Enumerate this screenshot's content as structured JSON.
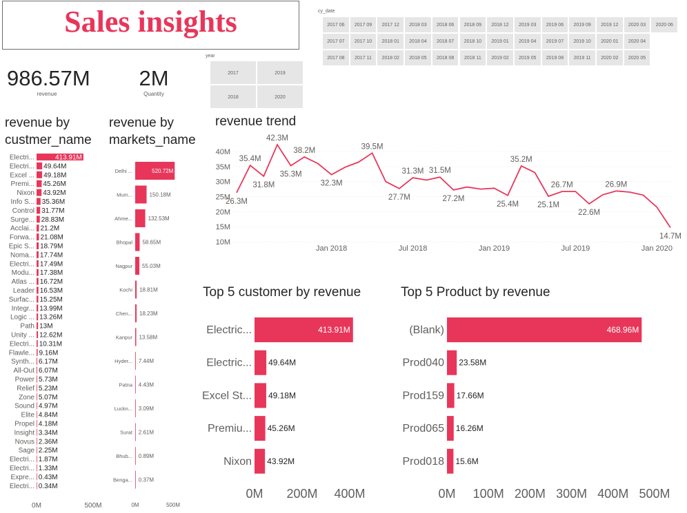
{
  "header": {
    "title": "Sales insights"
  },
  "kpis": [
    {
      "value": "986.57M",
      "label": "revenue"
    },
    {
      "value": "2M",
      "label": "Quantity"
    }
  ],
  "date_slicer": {
    "title": "cy_date",
    "rows": [
      [
        "2017 06",
        "2017 09",
        "2017 12",
        "2018 03",
        "2018 06",
        "2018 09",
        "2018 12",
        "2019 03",
        "2019 06",
        "2019 09",
        "2019 12",
        "2020 03",
        "2020 06"
      ],
      [
        "2017 07",
        "2017 10",
        "2018 01",
        "2018 04",
        "2018 07",
        "2018 10",
        "2019 01",
        "2019 04",
        "2019 07",
        "2019 10",
        "2020 01",
        "2020 04"
      ],
      [
        "2017 08",
        "2017 11",
        "2018 02",
        "2018 05",
        "2018 08",
        "2018 11",
        "2019 02",
        "2019 05",
        "2019 08",
        "2019 11",
        "2020 02",
        "2020 05"
      ]
    ]
  },
  "year_slicer": {
    "title": "year",
    "items": [
      "2017",
      "2019",
      "2018",
      "2020"
    ]
  },
  "colors": {
    "accent": "#e8365a",
    "tile": "#e6e6e6",
    "text": "#252423",
    "muted": "#605e5c"
  },
  "chart_data": [
    {
      "id": "revenue_by_customer",
      "type": "bar",
      "orientation": "horizontal",
      "title": "revenue by custmer_name",
      "title_lines": [
        "revenue by",
        "custmer_name"
      ],
      "categories": [
        "Electri...",
        "Electri...",
        "Excel ...",
        "Premi...",
        "Nixon",
        "Info S...",
        "Control",
        "Surge...",
        "Acclai...",
        "Forwa...",
        "Epic S...",
        "Noma...",
        "Electri...",
        "Modu...",
        "Atlas ...",
        "Leader",
        "Surfac...",
        "Integr...",
        "Logic ...",
        "Path",
        "Unity ...",
        "Electri...",
        "Flawle...",
        "Synth...",
        "All-Out",
        "Power",
        "Relief",
        "Zone",
        "Sound",
        "Elite",
        "Propel",
        "Insight",
        "Novus",
        "Sage",
        "Electri...",
        "Electri...",
        "Expre...",
        "Electri..."
      ],
      "values": [
        413.91,
        49.64,
        49.18,
        45.26,
        43.92,
        35.36,
        31.77,
        28.83,
        21.2,
        21.08,
        18.79,
        17.74,
        17.49,
        17.38,
        16.72,
        16.53,
        15.25,
        13.99,
        13.26,
        13,
        12.62,
        10.31,
        9.16,
        6.17,
        6.07,
        5.73,
        5.23,
        5.07,
        4.97,
        4.84,
        4.18,
        3.34,
        2.36,
        2.25,
        1.87,
        1.33,
        0.43,
        0.34
      ],
      "labels": [
        "413.91M",
        "49.64M",
        "49.18M",
        "45.26M",
        "43.92M",
        "35.36M",
        "31.77M",
        "28.83M",
        "21.2M",
        "21.08M",
        "18.79M",
        "17.74M",
        "17.49M",
        "17.38M",
        "16.72M",
        "16.53M",
        "15.25M",
        "13.99M",
        "13.26M",
        "13M",
        "12.62M",
        "10.31M",
        "9.16M",
        "6.17M",
        "6.07M",
        "5.73M",
        "5.23M",
        "5.07M",
        "4.97M",
        "4.84M",
        "4.18M",
        "3.34M",
        "2.36M",
        "2.25M",
        "1.87M",
        "1.33M",
        "0.43M",
        "0.34M"
      ],
      "xlim": [
        0,
        500
      ],
      "ticks": [
        "0M",
        "500M"
      ]
    },
    {
      "id": "revenue_by_market",
      "type": "bar",
      "orientation": "horizontal",
      "title": "revenue by markets_name",
      "title_lines": [
        "revenue by",
        "markets_name"
      ],
      "categories": [
        "Delhi ...",
        "Mum...",
        "Ahme...",
        "Bhopal",
        "Nagpur",
        "Kochi",
        "Chen...",
        "Kanpur",
        "Hyder...",
        "Patna",
        "Luckn...",
        "Surat",
        "Bhub...",
        "Benga..."
      ],
      "values": [
        520.72,
        150.18,
        132.53,
        58.65,
        55.03,
        18.81,
        18.23,
        13.58,
        7.44,
        4.43,
        3.09,
        2.61,
        0.89,
        0.37
      ],
      "labels": [
        "520.72M",
        "150.18M",
        "132.53M",
        "58.65M",
        "55.03M",
        "18.81M",
        "18.23M",
        "13.58M",
        "7.44M",
        "4.43M",
        "3.09M",
        "2.61M",
        "0.89M",
        "0.37M"
      ],
      "xlim": [
        0,
        500
      ],
      "ticks": [
        "0M",
        "500M"
      ]
    },
    {
      "id": "revenue_trend",
      "type": "line",
      "title": "revenue trend",
      "values": [
        26.3,
        35.4,
        31.8,
        42.3,
        35.3,
        38.2,
        36,
        32.3,
        34.8,
        36.5,
        39.5,
        30,
        27.7,
        31.3,
        30.5,
        31.5,
        27.2,
        28.2,
        27.5,
        27.8,
        25.4,
        35.2,
        33,
        25.1,
        26.7,
        26.7,
        22.6,
        25.6,
        26.9,
        26.5,
        25.5,
        21.5,
        14.7
      ],
      "labels": [
        "26.3M",
        "35.4M",
        "31.8M",
        "42.3M",
        "35.3M",
        "38.2M",
        "",
        "32.3M",
        "",
        "",
        "39.5M",
        "",
        "27.7M",
        "31.3M",
        "",
        "31.5M",
        "27.2M",
        "",
        "",
        "",
        "25.4M",
        "35.2M",
        "",
        "25.1M",
        "26.7M",
        "",
        "22.6M",
        "",
        "26.9M",
        "",
        "",
        "",
        "14.7M"
      ],
      "x_ticks": [
        "Jan 2018",
        "Jul 2018",
        "Jan 2019",
        "Jul 2019",
        "Jan 2020"
      ],
      "x_tick_index": [
        7,
        13,
        19,
        25,
        31
      ],
      "y_ticks": [
        "10M",
        "15M",
        "20M",
        "25M",
        "30M",
        "35M",
        "40M"
      ],
      "ylim": [
        10,
        43
      ]
    },
    {
      "id": "top5_customer",
      "type": "bar",
      "orientation": "horizontal",
      "title": "Top 5 customer by revenue",
      "categories": [
        "Electric...",
        "Electric...",
        "Excel St...",
        "Premiu...",
        "Nixon"
      ],
      "values": [
        413.91,
        49.64,
        49.18,
        45.26,
        43.92
      ],
      "labels": [
        "413.91M",
        "49.64M",
        "49.18M",
        "45.26M",
        "43.92M"
      ],
      "xlim": [
        0,
        400
      ],
      "ticks": [
        "0M",
        "200M",
        "400M"
      ]
    },
    {
      "id": "top5_product",
      "type": "bar",
      "orientation": "horizontal",
      "title": "Top 5 Product by revenue",
      "categories": [
        "(Blank)",
        "Prod040",
        "Prod159",
        "Prod065",
        "Prod018"
      ],
      "values": [
        468.96,
        23.58,
        17.66,
        16.26,
        15.6
      ],
      "labels": [
        "468.96M",
        "23.58M",
        "17.66M",
        "16.26M",
        "15.6M"
      ],
      "xlim": [
        0,
        500
      ],
      "ticks": [
        "0M",
        "100M",
        "200M",
        "300M",
        "400M",
        "500M"
      ]
    }
  ]
}
